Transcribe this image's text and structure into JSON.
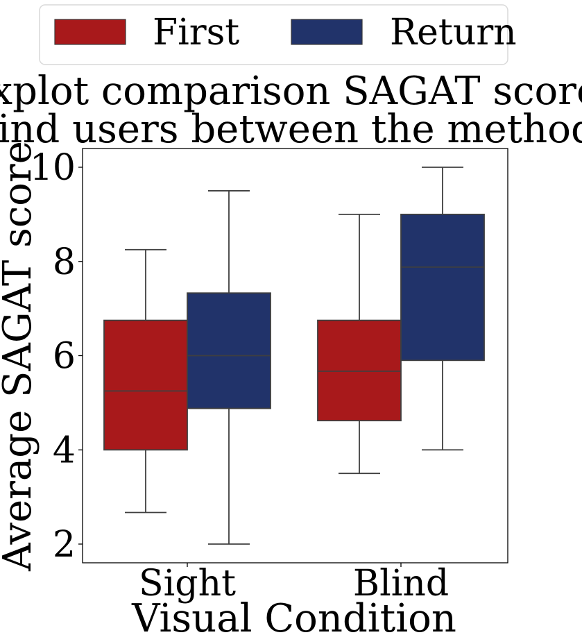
{
  "chart_data": {
    "type": "boxplot",
    "title_lines": [
      "Boxplot comparison SAGAT score of",
      "blind users between the methods."
    ],
    "xlabel": "Visual Condition",
    "ylabel": "Average SAGAT score",
    "categories": [
      "Sight",
      "Blind"
    ],
    "ylim": [
      1.6,
      10.4
    ],
    "yticks": [
      2,
      4,
      6,
      8,
      10
    ],
    "grid": false,
    "legend": {
      "position": "top",
      "entries": [
        "First",
        "Return"
      ]
    },
    "series": [
      {
        "name": "First",
        "color": "#a8191b",
        "boxes": [
          {
            "category": "Sight",
            "whisker_low": 2.67,
            "q1": 4.0,
            "median": 5.25,
            "q3": 6.75,
            "whisker_high": 8.25
          },
          {
            "category": "Blind",
            "whisker_low": 3.5,
            "q1": 4.62,
            "median": 5.67,
            "q3": 6.75,
            "whisker_high": 9.0
          }
        ]
      },
      {
        "name": "Return",
        "color": "#21336a",
        "boxes": [
          {
            "category": "Sight",
            "whisker_low": 2.0,
            "q1": 4.88,
            "median": 6.0,
            "q3": 7.33,
            "whisker_high": 9.5
          },
          {
            "category": "Blind",
            "whisker_low": 4.0,
            "q1": 5.9,
            "median": 7.88,
            "q3": 9.0,
            "whisker_high": 10.0
          }
        ]
      }
    ]
  }
}
